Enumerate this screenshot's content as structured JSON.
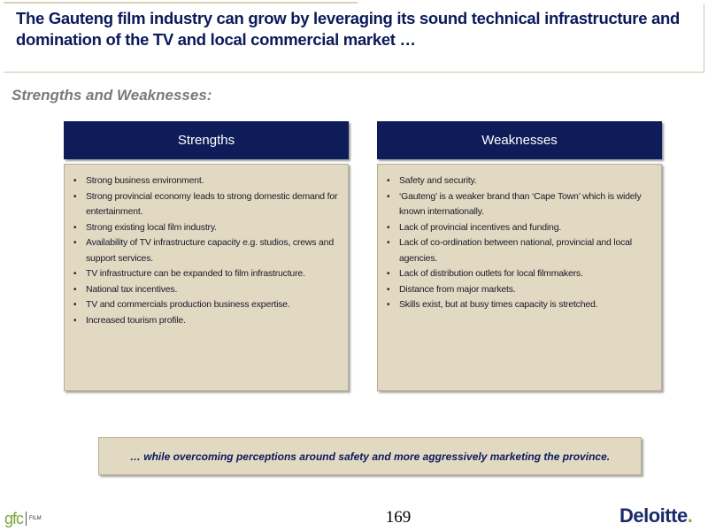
{
  "title": "The Gauteng film industry can grow by leveraging its sound technical infrastructure and domination of the TV and local commercial market …",
  "section_heading": "Strengths and Weaknesses:",
  "strengths": {
    "header": "Strengths",
    "items": [
      "Strong business environment.",
      "Strong provincial economy leads to strong domestic demand for entertainment.",
      "Strong existing local film industry.",
      "Availability of TV infrastructure capacity e.g. studios, crews and support services.",
      "TV infrastructure can be expanded to film infrastructure.",
      "National tax incentives.",
      "TV and commercials production business expertise.",
      "Increased tourism profile."
    ]
  },
  "weaknesses": {
    "header": "Weaknesses",
    "items": [
      "Safety and security.",
      "‘Gauteng’ is a weaker brand than ‘Cape Town’ which is widely known internationally.",
      "Lack of provincial incentives and funding.",
      "Lack of co-ordination between national, provincial and local agencies.",
      "Lack of distribution outlets for local filmmakers.",
      "Distance from major markets.",
      "Skills exist, but at busy times capacity is stretched."
    ]
  },
  "footer_text": "… while overcoming perceptions around safety and more aggressively marketing the province.",
  "page_number": "169",
  "logos": {
    "gfc_text": "gfc",
    "gfc_film_text": "FILM",
    "deloitte_text": "Deloitte",
    "deloitte_dot": "."
  },
  "colors": {
    "navy": "#0e1d5a",
    "beige": "#e2d9c2",
    "title_blue": "#0b1a5a",
    "heading_gray": "#7a7a7a",
    "gfc_green": "#7da43a",
    "deloitte_green": "#7ab648"
  }
}
